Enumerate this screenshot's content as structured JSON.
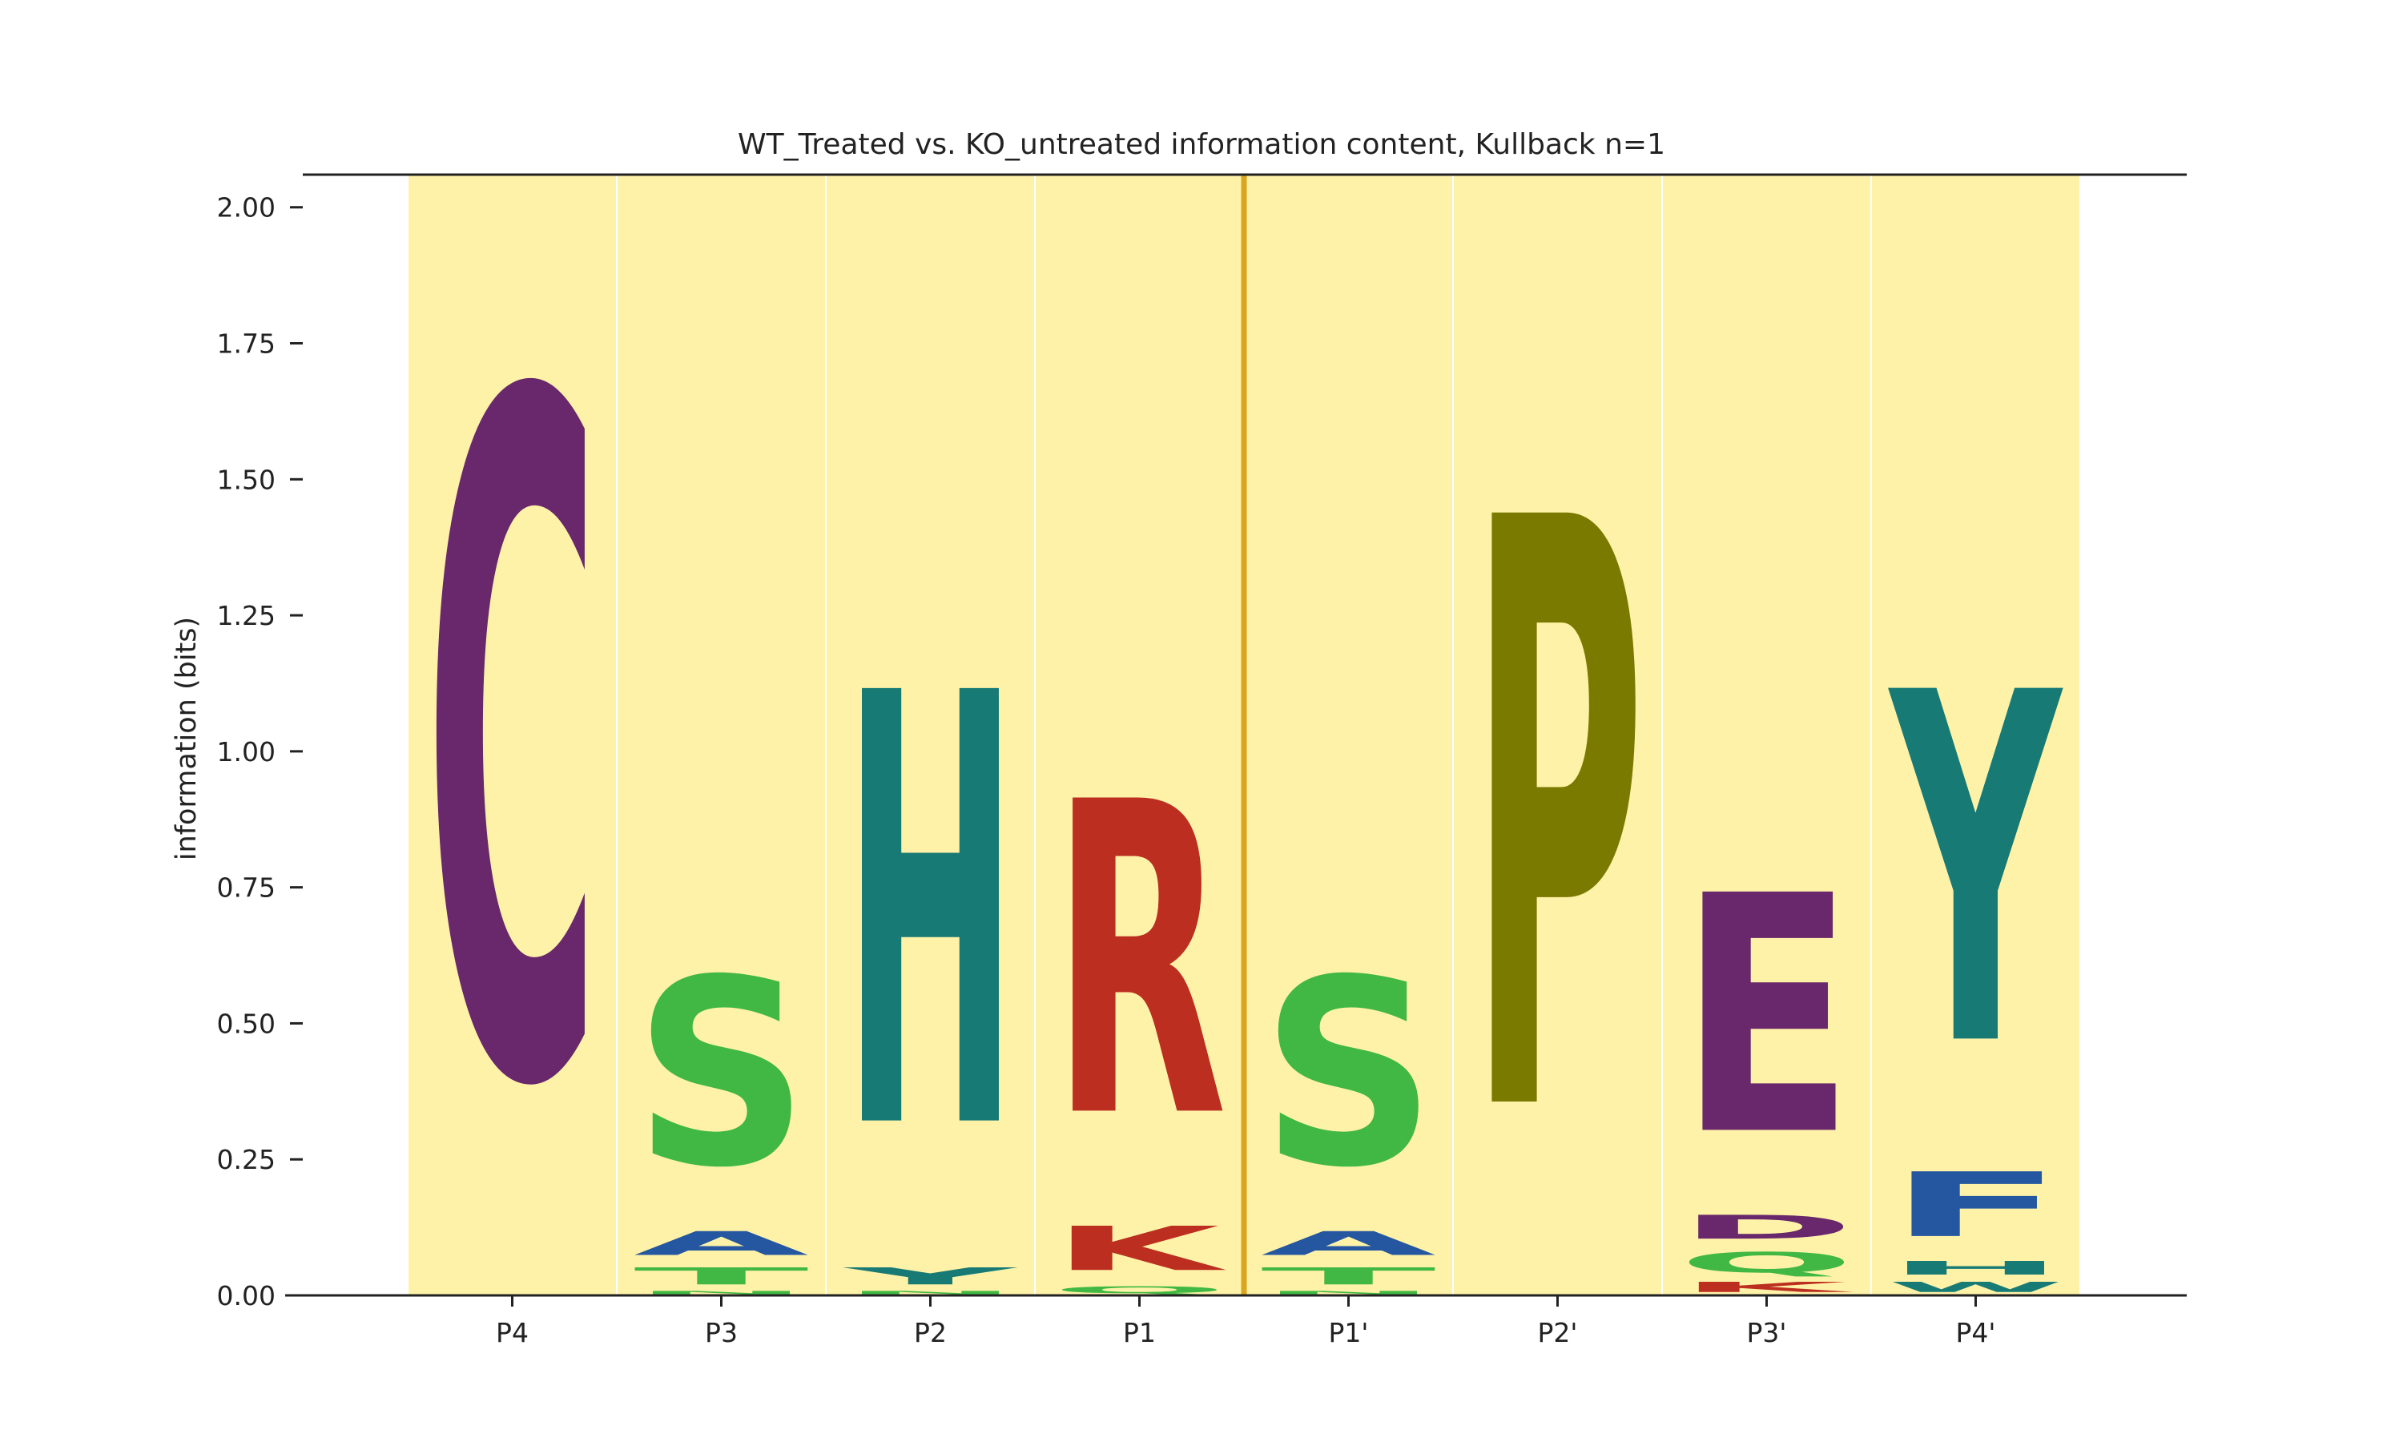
{
  "chart_data": {
    "type": "sequence-logo",
    "title": "WT_Treated vs. KO_untreated information content, Kullback n=1",
    "xlabel": "",
    "ylabel": "information (bits)",
    "ylim": [
      0,
      2.06
    ],
    "yticks": [
      0.0,
      0.25,
      0.5,
      0.75,
      1.0,
      1.25,
      1.5,
      1.75,
      2.0
    ],
    "ytick_labels": [
      "0.00",
      "0.25",
      "0.50",
      "0.75",
      "1.00",
      "1.25",
      "1.50",
      "1.75",
      "2.00"
    ],
    "positions": [
      "P4",
      "P3",
      "P2",
      "P1",
      "P1'",
      "P2'",
      "P3'",
      "P4'"
    ],
    "cleavage_site_between": [
      "P1",
      "P1'"
    ],
    "grid": false,
    "legend": "none",
    "colors": {
      "background": "#fef2a8",
      "cleavage_line": "#daa520",
      "C": "#68286b",
      "E": "#68286b",
      "D": "#68286b",
      "S": "#41b843",
      "T": "#41b843",
      "N": "#41b843",
      "Q": "#41b843",
      "G": "#41b843",
      "A": "#2457a0",
      "F": "#2457a0",
      "H": "#177a75",
      "Y": "#177a75",
      "W": "#177a75",
      "R": "#bb2e20",
      "K": "#bb2e20",
      "P": "#7a7a00"
    },
    "stacks": [
      {
        "position": "P4",
        "letters": [
          {
            "letter": "C",
            "bits": 2.0
          }
        ]
      },
      {
        "position": "P3",
        "letters": [
          {
            "letter": "N",
            "bits": 0.01
          },
          {
            "letter": "T",
            "bits": 0.05
          },
          {
            "letter": "A",
            "bits": 0.07
          },
          {
            "letter": "S",
            "bits": 0.55
          }
        ]
      },
      {
        "position": "P2",
        "letters": [
          {
            "letter": "N",
            "bits": 0.01
          },
          {
            "letter": "Y",
            "bits": 0.05
          },
          {
            "letter": "H",
            "bits": 1.27
          }
        ]
      },
      {
        "position": "P1",
        "letters": [
          {
            "letter": "Q",
            "bits": 0.02
          },
          {
            "letter": "K",
            "bits": 0.13
          },
          {
            "letter": "R",
            "bits": 0.92
          }
        ]
      },
      {
        "position": "P1'",
        "letters": [
          {
            "letter": "N",
            "bits": 0.01
          },
          {
            "letter": "T",
            "bits": 0.05
          },
          {
            "letter": "A",
            "bits": 0.07
          },
          {
            "letter": "S",
            "bits": 0.55
          }
        ]
      },
      {
        "position": "P2'",
        "letters": [
          {
            "letter": "P",
            "bits": 1.73
          }
        ]
      },
      {
        "position": "P3'",
        "letters": [
          {
            "letter": "K",
            "bits": 0.03
          },
          {
            "letter": "Q",
            "bits": 0.06
          },
          {
            "letter": "D",
            "bits": 0.07
          },
          {
            "letter": "E",
            "bits": 0.7
          }
        ]
      },
      {
        "position": "P4'",
        "letters": [
          {
            "letter": "W",
            "bits": 0.03
          },
          {
            "letter": "H",
            "bits": 0.04
          },
          {
            "letter": "F",
            "bits": 0.19
          },
          {
            "letter": "Y",
            "bits": 1.03
          }
        ]
      }
    ]
  }
}
